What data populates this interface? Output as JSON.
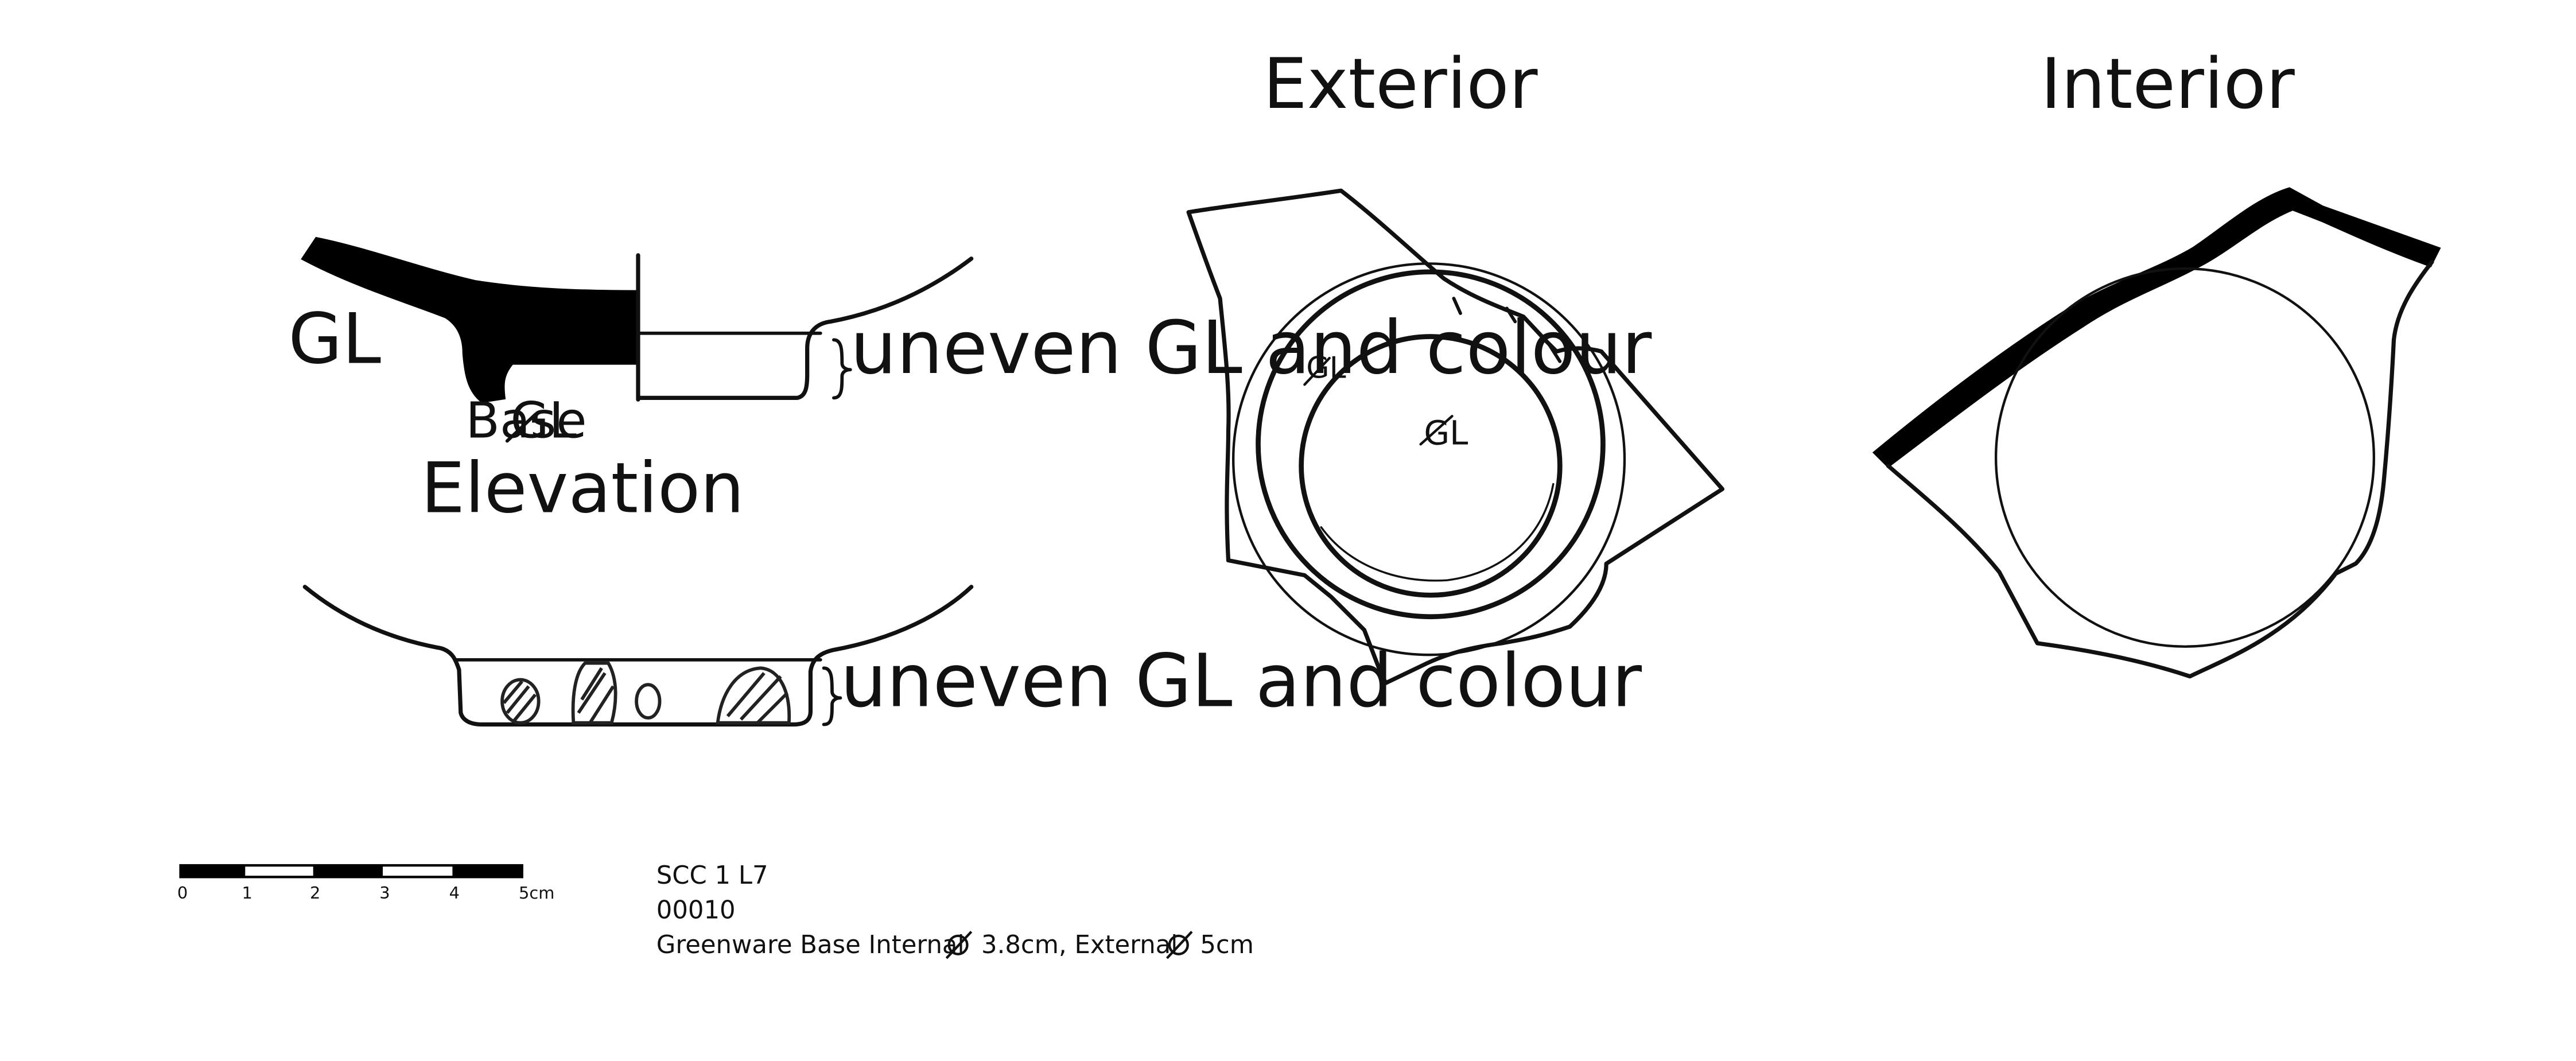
{
  "views": {
    "section_gl_label": "GL",
    "base_label": "Base",
    "base_gl_mark": "GL",
    "uneven_note_section": "uneven GL and colour",
    "elevation_title": "Elevation",
    "uneven_note_elevation": "uneven GL and colour",
    "exterior_title": "Exterior",
    "exterior_gl_mark_1": "GL",
    "exterior_gl_mark_2": "GL",
    "interior_title": "Interior"
  },
  "scale_bar": {
    "ticks": [
      "0",
      "1",
      "2",
      "3",
      "4",
      "5cm"
    ]
  },
  "caption": {
    "line1": "SCC 1 L7",
    "line2": "00010",
    "line3_prefix": "Greenware Base Internal",
    "line3_internal": "3.8cm, External",
    "line3_external": "5cm"
  }
}
